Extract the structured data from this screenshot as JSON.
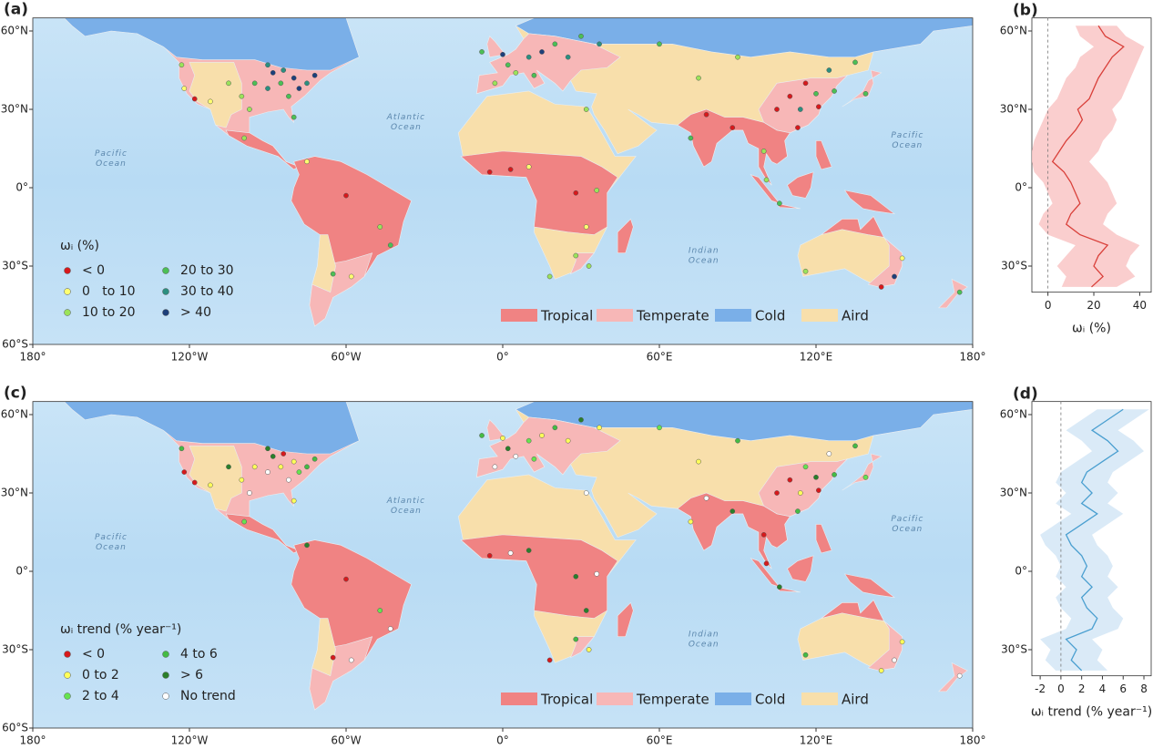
{
  "chart_data": [
    {
      "type": "map",
      "panel_label": "(a)",
      "legend_title": "ωᵢ (%)",
      "xlim": [
        -180,
        180
      ],
      "ylim": [
        -60,
        65
      ],
      "xticks": [
        {
          "value": -180,
          "label": "180°"
        },
        {
          "value": -120,
          "label": "120°W"
        },
        {
          "value": -60,
          "label": "60°W"
        },
        {
          "value": 0,
          "label": "0°"
        },
        {
          "value": 60,
          "label": "60°E"
        },
        {
          "value": 120,
          "label": "120°E"
        },
        {
          "value": 180,
          "label": "180°"
        }
      ],
      "yticks": [
        {
          "value": 60,
          "label": "60°N"
        },
        {
          "value": 30,
          "label": "30°N"
        },
        {
          "value": 0,
          "label": "0°"
        },
        {
          "value": -30,
          "label": "30°S"
        },
        {
          "value": -60,
          "label": "60°S"
        }
      ],
      "classes": [
        {
          "name": "< 0",
          "color": "#d7191c"
        },
        {
          "name": "0   to 10",
          "color": "#ffff70"
        },
        {
          "name": "10 to 20",
          "color": "#9be35a"
        },
        {
          "name": "20 to 30",
          "color": "#4cbf55"
        },
        {
          "name": "30 to 40",
          "color": "#2b8f80"
        },
        {
          "name": "> 40",
          "color": "#1d3f7a"
        }
      ],
      "biomes": [
        {
          "name": "Tropical",
          "color": "#f08383"
        },
        {
          "name": "Temperate",
          "color": "#f7b7b7"
        },
        {
          "name": "Cold",
          "color": "#7aafe8"
        },
        {
          "name": "Aird",
          "color": "#f8dfab"
        }
      ],
      "ocean_labels": [
        [
          "Pacific",
          "Ocean"
        ],
        [
          "Atlantic",
          "Ocean"
        ],
        [
          "Pacific",
          "Ocean"
        ],
        [
          "Indian",
          "Ocean"
        ]
      ],
      "stations": [
        [
          -80,
          42,
          5
        ],
        [
          -75,
          40,
          4
        ],
        [
          -85,
          40,
          3
        ],
        [
          -90,
          38,
          4
        ],
        [
          -78,
          38,
          5
        ],
        [
          -88,
          44,
          5
        ],
        [
          -95,
          40,
          3
        ],
        [
          -72,
          43,
          5
        ],
        [
          -82,
          35,
          3
        ],
        [
          -84,
          45,
          4
        ],
        [
          -100,
          35,
          2
        ],
        [
          -105,
          40,
          2
        ],
        [
          -118,
          34,
          0
        ],
        [
          -122,
          38,
          1
        ],
        [
          -112,
          33,
          1
        ],
        [
          -97,
          30,
          2
        ],
        [
          -80,
          27,
          3
        ],
        [
          -90,
          47,
          4
        ],
        [
          -123,
          47,
          2
        ],
        [
          -60,
          -3,
          0
        ],
        [
          -47,
          -15,
          2
        ],
        [
          -43,
          -22,
          3
        ],
        [
          -65,
          -33,
          3
        ],
        [
          -58,
          -34,
          1
        ],
        [
          -75,
          10,
          1
        ],
        [
          -99,
          19,
          2
        ],
        [
          0,
          51,
          5
        ],
        [
          10,
          50,
          4
        ],
        [
          2,
          47,
          3
        ],
        [
          15,
          52,
          5
        ],
        [
          20,
          55,
          3
        ],
        [
          25,
          50,
          4
        ],
        [
          -3,
          40,
          2
        ],
        [
          12,
          43,
          3
        ],
        [
          30,
          58,
          3
        ],
        [
          37,
          55,
          4
        ],
        [
          5,
          44,
          2
        ],
        [
          -8,
          52,
          3
        ],
        [
          3,
          7,
          0
        ],
        [
          -5,
          6,
          0
        ],
        [
          10,
          8,
          1
        ],
        [
          28,
          -2,
          0
        ],
        [
          36,
          -1,
          2
        ],
        [
          28,
          -26,
          2
        ],
        [
          18,
          -34,
          2
        ],
        [
          32,
          -15,
          1
        ],
        [
          33,
          -30,
          2
        ],
        [
          32,
          30,
          2
        ],
        [
          116,
          40,
          0
        ],
        [
          120,
          36,
          3
        ],
        [
          121,
          31,
          0
        ],
        [
          114,
          30,
          4
        ],
        [
          113,
          23,
          0
        ],
        [
          105,
          30,
          0
        ],
        [
          127,
          37,
          3
        ],
        [
          139,
          36,
          3
        ],
        [
          78,
          28,
          0
        ],
        [
          88,
          23,
          0
        ],
        [
          72,
          19,
          3
        ],
        [
          100,
          14,
          2
        ],
        [
          106,
          -6,
          3
        ],
        [
          101,
          3,
          2
        ],
        [
          75,
          42,
          2
        ],
        [
          90,
          50,
          2
        ],
        [
          60,
          55,
          3
        ],
        [
          125,
          45,
          4
        ],
        [
          135,
          48,
          3
        ],
        [
          110,
          35,
          0
        ],
        [
          150,
          -34,
          5
        ],
        [
          145,
          -38,
          0
        ],
        [
          116,
          -32,
          2
        ],
        [
          153,
          -27,
          1
        ],
        [
          175,
          -40,
          3
        ]
      ]
    },
    {
      "type": "line",
      "panel_label": "(b)",
      "x_label": "ωᵢ (%)",
      "xlim": [
        -7,
        45
      ],
      "ylim": [
        -40,
        65
      ],
      "xticks": [
        0,
        20,
        40
      ],
      "yticks": [
        {
          "value": 60,
          "label": "60°N"
        },
        {
          "value": 30,
          "label": "30°N"
        },
        {
          "value": 0,
          "label": "0°"
        },
        {
          "value": -30,
          "label": "30°S"
        }
      ],
      "reference_x": 0,
      "lat": [
        62,
        58,
        54,
        50,
        46,
        42,
        38,
        34,
        30,
        26,
        22,
        18,
        14,
        10,
        6,
        2,
        -2,
        -6,
        -10,
        -14,
        -18,
        -22,
        -26,
        -30,
        -34,
        -38
      ],
      "series": [
        {
          "color": "#d9403a",
          "band_color": "#f9c6c6",
          "values": [
            22,
            25,
            33,
            28,
            25,
            22,
            20,
            18,
            13,
            15,
            12,
            8,
            5,
            2,
            7,
            10,
            12,
            14,
            10,
            8,
            14,
            26,
            22,
            20,
            24,
            19
          ],
          "lower": [
            12,
            14,
            20,
            14,
            12,
            8,
            6,
            4,
            0,
            -2,
            -4,
            -6,
            -7,
            -7,
            -6,
            -2,
            0,
            2,
            -2,
            -4,
            0,
            12,
            8,
            4,
            8,
            6
          ],
          "upper": [
            30,
            34,
            42,
            40,
            38,
            36,
            34,
            32,
            28,
            30,
            28,
            24,
            22,
            18,
            22,
            26,
            28,
            30,
            26,
            24,
            30,
            40,
            36,
            34,
            38,
            30
          ]
        }
      ]
    },
    {
      "type": "map",
      "panel_label": "(c)",
      "legend_title": "ωᵢ trend (% year⁻¹)",
      "xlim": [
        -180,
        180
      ],
      "ylim": [
        -60,
        65
      ],
      "xticks": [
        {
          "value": -180,
          "label": "180°"
        },
        {
          "value": -120,
          "label": "120°W"
        },
        {
          "value": -60,
          "label": "60°W"
        },
        {
          "value": 0,
          "label": "0°"
        },
        {
          "value": 60,
          "label": "60°E"
        },
        {
          "value": 120,
          "label": "120°E"
        },
        {
          "value": 180,
          "label": "180°"
        }
      ],
      "yticks": [
        {
          "value": 60,
          "label": "60°N"
        },
        {
          "value": 30,
          "label": "30°N"
        },
        {
          "value": 0,
          "label": "0°"
        },
        {
          "value": -30,
          "label": "30°S"
        },
        {
          "value": -60,
          "label": "60°S"
        }
      ],
      "classes": [
        {
          "name": "< 0",
          "color": "#d7191c"
        },
        {
          "name": "0 to 2",
          "color": "#ffff5a"
        },
        {
          "name": "2 to 4",
          "color": "#66e34f"
        },
        {
          "name": "4 to 6",
          "color": "#44bb44"
        },
        {
          "name": "> 6",
          "color": "#2a7f2a"
        },
        {
          "name": "No trend",
          "color": "#ffffff"
        }
      ],
      "biomes": [
        {
          "name": "Tropical",
          "color": "#f08383"
        },
        {
          "name": "Temperate",
          "color": "#f7b7b7"
        },
        {
          "name": "Cold",
          "color": "#7aafe8"
        },
        {
          "name": "Aird",
          "color": "#f8dfab"
        }
      ],
      "ocean_labels": [
        [
          "Pacific",
          "Ocean"
        ],
        [
          "Atlantic",
          "Ocean"
        ],
        [
          "Pacific",
          "Ocean"
        ],
        [
          "Indian",
          "Ocean"
        ]
      ],
      "stations": [
        [
          -80,
          42,
          1
        ],
        [
          -75,
          40,
          3
        ],
        [
          -85,
          40,
          1
        ],
        [
          -90,
          38,
          5
        ],
        [
          -78,
          38,
          2
        ],
        [
          -88,
          44,
          4
        ],
        [
          -95,
          40,
          1
        ],
        [
          -72,
          43,
          3
        ],
        [
          -82,
          35,
          5
        ],
        [
          -84,
          45,
          0
        ],
        [
          -100,
          35,
          1
        ],
        [
          -105,
          40,
          4
        ],
        [
          -118,
          34,
          0
        ],
        [
          -122,
          38,
          0
        ],
        [
          -112,
          33,
          1
        ],
        [
          -97,
          30,
          5
        ],
        [
          -80,
          27,
          1
        ],
        [
          -90,
          47,
          4
        ],
        [
          -123,
          47,
          3
        ],
        [
          -60,
          -3,
          0
        ],
        [
          -47,
          -15,
          2
        ],
        [
          -43,
          -22,
          5
        ],
        [
          -65,
          -33,
          0
        ],
        [
          -58,
          -34,
          5
        ],
        [
          -75,
          10,
          4
        ],
        [
          -99,
          19,
          2
        ],
        [
          0,
          51,
          1
        ],
        [
          10,
          50,
          2
        ],
        [
          2,
          47,
          4
        ],
        [
          15,
          52,
          1
        ],
        [
          20,
          55,
          3
        ],
        [
          25,
          50,
          1
        ],
        [
          -3,
          40,
          5
        ],
        [
          12,
          43,
          2
        ],
        [
          30,
          58,
          4
        ],
        [
          37,
          55,
          1
        ],
        [
          5,
          44,
          5
        ],
        [
          -8,
          52,
          3
        ],
        [
          3,
          7,
          5
        ],
        [
          -5,
          6,
          0
        ],
        [
          10,
          8,
          4
        ],
        [
          28,
          -2,
          4
        ],
        [
          36,
          -1,
          5
        ],
        [
          28,
          -26,
          3
        ],
        [
          18,
          -34,
          0
        ],
        [
          32,
          -15,
          4
        ],
        [
          33,
          -30,
          1
        ],
        [
          32,
          30,
          5
        ],
        [
          116,
          40,
          2
        ],
        [
          120,
          36,
          4
        ],
        [
          121,
          31,
          0
        ],
        [
          114,
          30,
          1
        ],
        [
          113,
          23,
          3
        ],
        [
          105,
          30,
          0
        ],
        [
          127,
          37,
          3
        ],
        [
          139,
          36,
          2
        ],
        [
          78,
          28,
          5
        ],
        [
          88,
          23,
          4
        ],
        [
          72,
          19,
          1
        ],
        [
          100,
          14,
          0
        ],
        [
          106,
          -6,
          4
        ],
        [
          101,
          3,
          0
        ],
        [
          75,
          42,
          1
        ],
        [
          90,
          50,
          3
        ],
        [
          60,
          55,
          2
        ],
        [
          125,
          45,
          5
        ],
        [
          135,
          48,
          3
        ],
        [
          110,
          35,
          0
        ],
        [
          150,
          -34,
          5
        ],
        [
          145,
          -38,
          1
        ],
        [
          116,
          -32,
          3
        ],
        [
          153,
          -27,
          1
        ],
        [
          175,
          -40,
          5
        ]
      ]
    },
    {
      "type": "line",
      "panel_label": "(d)",
      "x_label": "ωᵢ trend (% year⁻¹)",
      "xlim": [
        -2.8,
        8.7
      ],
      "ylim": [
        -40,
        65
      ],
      "xticks": [
        -2,
        0,
        2,
        4,
        6,
        8
      ],
      "yticks": [
        {
          "value": 60,
          "label": "60°N"
        },
        {
          "value": 30,
          "label": "30°N"
        },
        {
          "value": 0,
          "label": "0°"
        },
        {
          "value": -30,
          "label": "30°S"
        }
      ],
      "reference_x": 0,
      "lat": [
        62,
        58,
        54,
        50,
        46,
        42,
        38,
        34,
        30,
        26,
        22,
        18,
        14,
        10,
        6,
        2,
        -2,
        -6,
        -10,
        -14,
        -18,
        -22,
        -26,
        -30,
        -34,
        -38
      ],
      "series": [
        {
          "color": "#4a9fd0",
          "band_color": "#d3e6f6",
          "values": [
            6,
            4.5,
            3,
            4.5,
            5.5,
            4,
            2.5,
            2,
            3,
            2,
            3.5,
            2,
            0.5,
            1,
            2,
            2.5,
            2,
            3,
            2,
            2.5,
            3.5,
            3,
            0.5,
            1.5,
            1,
            2
          ],
          "lower": [
            3.5,
            2,
            0.5,
            2,
            3,
            1.5,
            0,
            -0.5,
            0.5,
            -0.5,
            1,
            -0.5,
            -2,
            -1.5,
            -0.5,
            0,
            -0.5,
            0.5,
            -0.5,
            0,
            1,
            0.5,
            -2,
            -1,
            -1.5,
            -0.5
          ],
          "upper": [
            8.5,
            7,
            5.5,
            7,
            8,
            6.5,
            5,
            4.5,
            5.5,
            4.5,
            6,
            4.5,
            3,
            3.5,
            4.5,
            5,
            4.5,
            5.5,
            4.5,
            5,
            6,
            5.5,
            3,
            4,
            3.5,
            4.5
          ]
        }
      ]
    }
  ]
}
